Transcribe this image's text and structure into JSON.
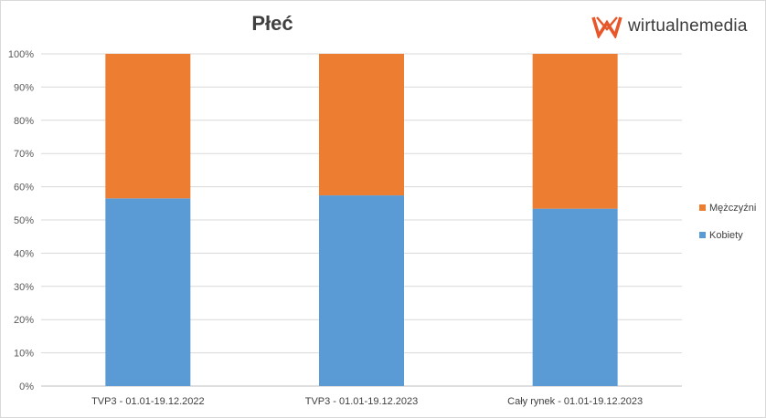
{
  "chart_data": {
    "type": "bar",
    "stacked": true,
    "percent_stacked": true,
    "title": "Płeć",
    "categories": [
      "TVP3 - 01.01-19.12.2022",
      "TVP3 - 01.01-19.12.2023",
      "Cały rynek - 01.01-19.12.2023"
    ],
    "series": [
      {
        "name": "Kobiety",
        "color": "#5b9bd5",
        "values": [
          56.5,
          57.4,
          53.4
        ]
      },
      {
        "name": "Mężczyźni",
        "color": "#ed7d31",
        "values": [
          43.5,
          42.6,
          46.6
        ]
      }
    ],
    "ylim": [
      0,
      100
    ],
    "yticks": [
      "0%",
      "10%",
      "20%",
      "30%",
      "40%",
      "50%",
      "60%",
      "70%",
      "80%",
      "90%",
      "100%"
    ],
    "grid": true,
    "legend_position": "right"
  },
  "logo": {
    "text": "wirtualnemedia",
    "color": "#e8572a",
    "icon": "wirtualnemedia-logo-icon"
  }
}
